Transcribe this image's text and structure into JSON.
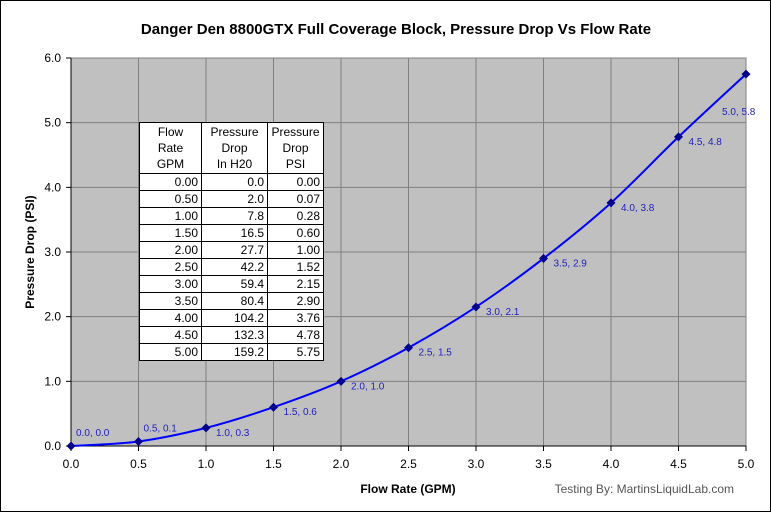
{
  "chart_data": {
    "type": "line",
    "title": "Danger Den 8800GTX Full Coverage Block,  Pressure Drop Vs Flow Rate",
    "xlabel": "Flow Rate (GPM)",
    "ylabel": "Pressure Drop (PSI)",
    "xlim": [
      0,
      5.0
    ],
    "ylim": [
      0,
      6.0
    ],
    "x_ticks": [
      "0.0",
      "0.5",
      "1.0",
      "1.5",
      "2.0",
      "2.5",
      "3.0",
      "3.5",
      "4.0",
      "4.5",
      "5.0"
    ],
    "y_ticks": [
      "0.0",
      "1.0",
      "2.0",
      "3.0",
      "4.0",
      "5.0",
      "6.0"
    ],
    "grid": true,
    "series": [
      {
        "name": "Pressure Drop",
        "x": [
          0.0,
          0.5,
          1.0,
          1.5,
          2.0,
          2.5,
          3.0,
          3.5,
          4.0,
          4.5,
          5.0
        ],
        "y": [
          0.0,
          0.07,
          0.28,
          0.6,
          1.0,
          1.52,
          2.15,
          2.9,
          3.76,
          4.78,
          5.75
        ],
        "labels": [
          "0.0, 0.0",
          "0.5, 0.1",
          "1.0, 0.3",
          "1.5, 0.6",
          "2.0, 1.0",
          "2.5, 1.5",
          "3.0, 2.1",
          "3.5, 2.9",
          "4.0, 3.8",
          "4.5, 4.8",
          "5.0, 5.8"
        ]
      }
    ],
    "colors": {
      "plot_background": "#c0c0c0",
      "line": "#0000ff",
      "marker": "#00008b",
      "label": "#1f1fbf",
      "grid": "#808080"
    }
  },
  "table": {
    "headers": [
      [
        "Flow",
        "Rate",
        "GPM"
      ],
      [
        "Pressure",
        "Drop",
        "In H20"
      ],
      [
        "Pressure",
        "Drop",
        "PSI"
      ]
    ],
    "rows": [
      [
        "0.00",
        "0.0",
        "0.00"
      ],
      [
        "0.50",
        "2.0",
        "0.07"
      ],
      [
        "1.00",
        "7.8",
        "0.28"
      ],
      [
        "1.50",
        "16.5",
        "0.60"
      ],
      [
        "2.00",
        "27.7",
        "1.00"
      ],
      [
        "2.50",
        "42.2",
        "1.52"
      ],
      [
        "3.00",
        "59.4",
        "2.15"
      ],
      [
        "3.50",
        "80.4",
        "2.90"
      ],
      [
        "4.00",
        "104.2",
        "3.76"
      ],
      [
        "4.50",
        "132.3",
        "4.78"
      ],
      [
        "5.00",
        "159.2",
        "5.75"
      ]
    ]
  },
  "credit": "Testing By:  MartinsLiquidLab.com"
}
